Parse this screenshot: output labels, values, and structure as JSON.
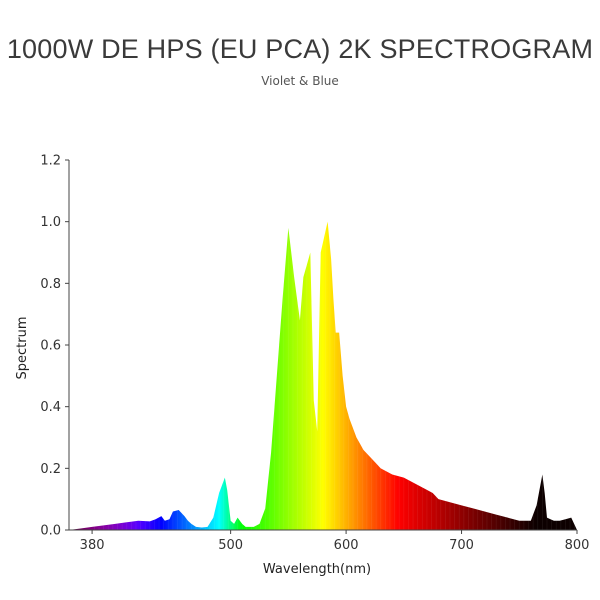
{
  "chart_data": {
    "type": "area",
    "title": "1000W DE HPS (EU PCA) 2K SPECTROGRAM",
    "subtitle": "Violet & Blue",
    "xlabel": "Wavelength(nm)",
    "ylabel": "Spectrum",
    "xlim": [
      360,
      800
    ],
    "ylim": [
      0,
      1.2
    ],
    "xticks": [
      380,
      500,
      600,
      700,
      800
    ],
    "yticks": [
      "0.0",
      "0.2",
      "0.4",
      "0.6",
      "0.8",
      "1.0",
      "1.2"
    ],
    "grid": false,
    "legend": "none",
    "series": [
      {
        "x": [
          360,
          370,
          380,
          390,
          400,
          410,
          420,
          430,
          435,
          440,
          443,
          447,
          450,
          455,
          460,
          463,
          466,
          470,
          475,
          480,
          485,
          490,
          495,
          497,
          500,
          503,
          506,
          510,
          513,
          516,
          520,
          525,
          530,
          535,
          540,
          545,
          550,
          555,
          560,
          563,
          566,
          569,
          572,
          575,
          578,
          581,
          584,
          587,
          589,
          591,
          594,
          597,
          600,
          603,
          606,
          609,
          612,
          615,
          620,
          625,
          630,
          640,
          650,
          660,
          670,
          675,
          680,
          690,
          700,
          710,
          720,
          730,
          740,
          750,
          760,
          765,
          768,
          770,
          772,
          774,
          777,
          780,
          785,
          790,
          795,
          800
        ],
        "y": [
          0.0,
          0.005,
          0.01,
          0.015,
          0.02,
          0.025,
          0.03,
          0.028,
          0.035,
          0.045,
          0.03,
          0.035,
          0.06,
          0.065,
          0.045,
          0.03,
          0.02,
          0.01,
          0.008,
          0.01,
          0.04,
          0.12,
          0.17,
          0.13,
          0.03,
          0.02,
          0.04,
          0.02,
          0.01,
          0.01,
          0.01,
          0.02,
          0.07,
          0.25,
          0.5,
          0.75,
          0.98,
          0.82,
          0.68,
          0.82,
          0.86,
          0.9,
          0.42,
          0.32,
          0.9,
          0.95,
          1.0,
          0.88,
          0.75,
          0.64,
          0.64,
          0.5,
          0.4,
          0.36,
          0.33,
          0.3,
          0.28,
          0.26,
          0.24,
          0.22,
          0.2,
          0.18,
          0.17,
          0.15,
          0.13,
          0.12,
          0.1,
          0.09,
          0.08,
          0.07,
          0.06,
          0.05,
          0.04,
          0.03,
          0.03,
          0.08,
          0.14,
          0.18,
          0.12,
          0.04,
          0.035,
          0.03,
          0.03,
          0.035,
          0.04,
          0.0
        ]
      }
    ]
  }
}
